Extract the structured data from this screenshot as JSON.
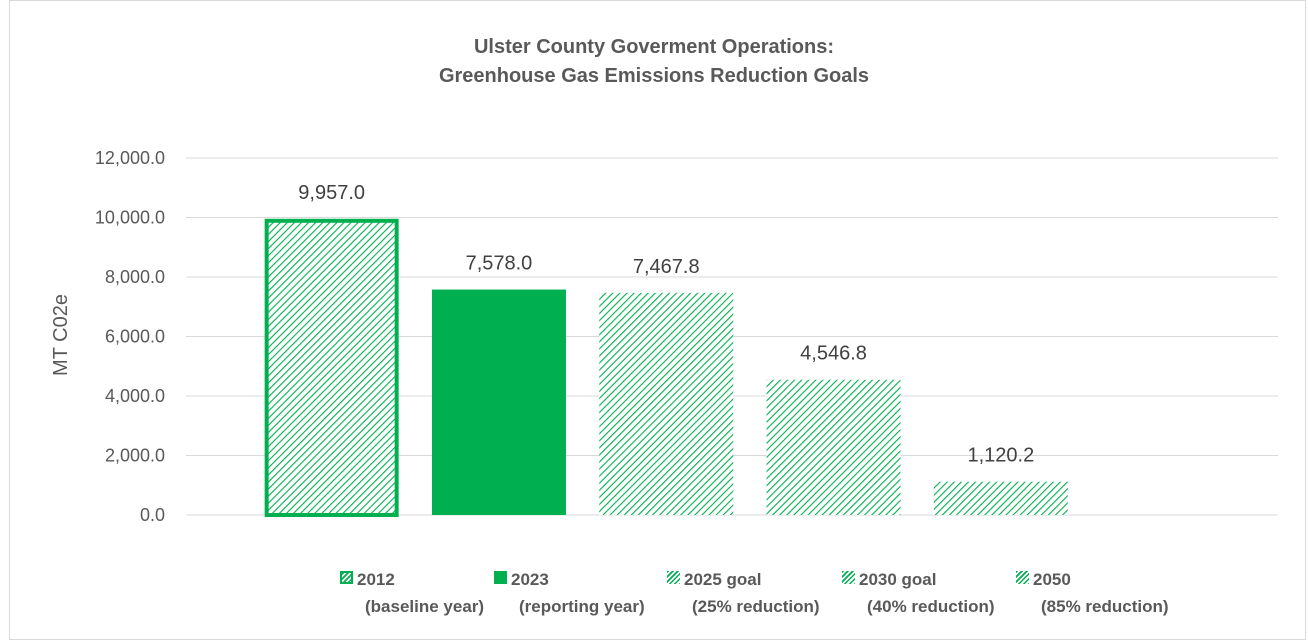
{
  "chart_data": {
    "type": "bar",
    "title_line1": "Ulster County Goverment Operations:",
    "title_line2": "Greenhouse Gas Emissions Reduction Goals",
    "ylabel": "MT C02e",
    "ylim": [
      0,
      12000
    ],
    "yticks": [
      "0.0",
      "2,000.0",
      "4,000.0",
      "6,000.0",
      "8,000.0",
      "10,000.0",
      "12,000.0"
    ],
    "grid": true,
    "legend_position": "bottom",
    "series": [
      {
        "name_line1": "2012",
        "name_line2": "(baseline year)",
        "value": 9957.0,
        "label": "9,957.0",
        "style": "outlined-hatch"
      },
      {
        "name_line1": "2023",
        "name_line2": "(reporting year)",
        "value": 7578.0,
        "label": "7,578.0",
        "style": "solid"
      },
      {
        "name_line1": "2025 goal",
        "name_line2": "(25% reduction)",
        "value": 7467.8,
        "label": "7,467.8",
        "style": "hatch"
      },
      {
        "name_line1": "2030 goal",
        "name_line2": "(40% reduction)",
        "value": 4546.8,
        "label": "4,546.8",
        "style": "hatch"
      },
      {
        "name_line1": "2050",
        "name_line2": "(85% reduction)",
        "value": 1120.2,
        "label": "1,120.2",
        "style": "hatch"
      }
    ],
    "colors": {
      "bar": "#00b050",
      "grid": "#d9d9d9",
      "text": "#595959"
    }
  }
}
